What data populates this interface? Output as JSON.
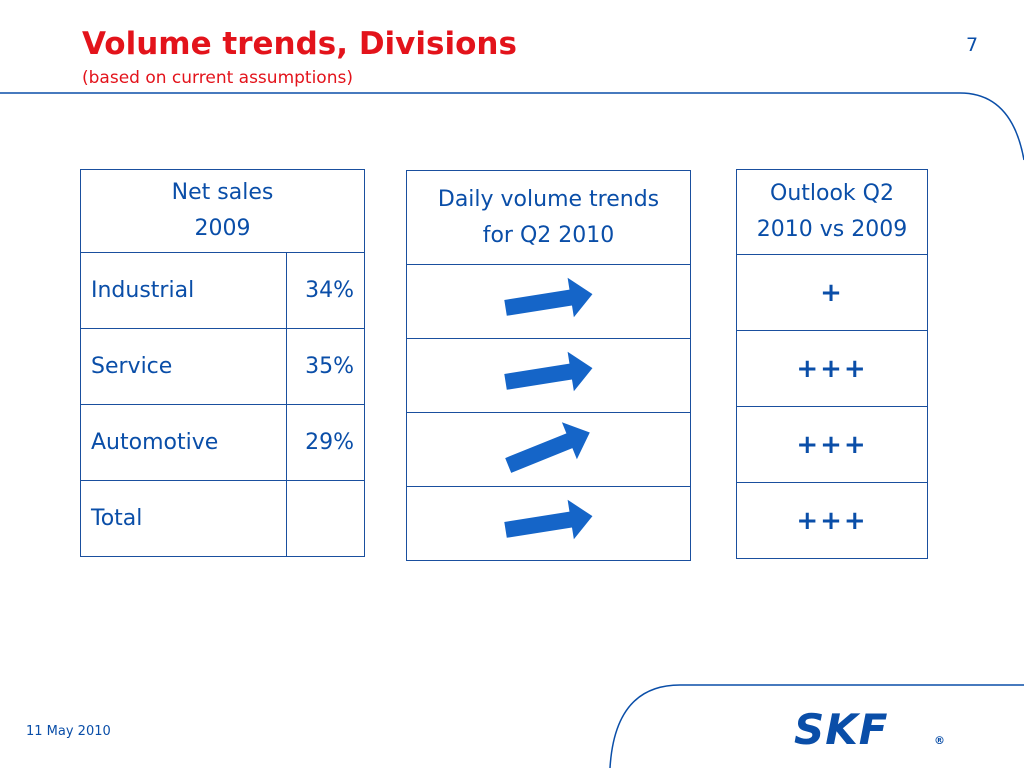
{
  "slide": {
    "title": "Volume trends, Divisions",
    "subtitle": "(based on current assumptions)",
    "page_number": "7",
    "date": "11 May 2010"
  },
  "net_sales": {
    "header_line1": "Net sales",
    "header_line2": "2009",
    "rows": [
      {
        "label": "Industrial",
        "value": "34%"
      },
      {
        "label": "Service",
        "value": "35%"
      },
      {
        "label": "Automotive",
        "value": "29%"
      },
      {
        "label": "Total",
        "value": ""
      }
    ]
  },
  "daily_trends": {
    "header_line1": "Daily volume trends",
    "header_line2": "for Q2 2010",
    "arrows": [
      {
        "direction": "slightly-up",
        "angle_deg": -9
      },
      {
        "direction": "slightly-up",
        "angle_deg": -9
      },
      {
        "direction": "up",
        "angle_deg": -22
      },
      {
        "direction": "slightly-up",
        "angle_deg": -9
      }
    ]
  },
  "outlook": {
    "header_line1": "Outlook Q2",
    "header_line2": "2010 vs 2009",
    "rows": [
      "+",
      "+++",
      "+++",
      "+++"
    ]
  },
  "logo": {
    "text": "SKF",
    "mark": "®"
  },
  "colors": {
    "brand_blue": "#0a4ea8",
    "title_red": "#e3131b",
    "arrow_blue": "#1565c8"
  }
}
